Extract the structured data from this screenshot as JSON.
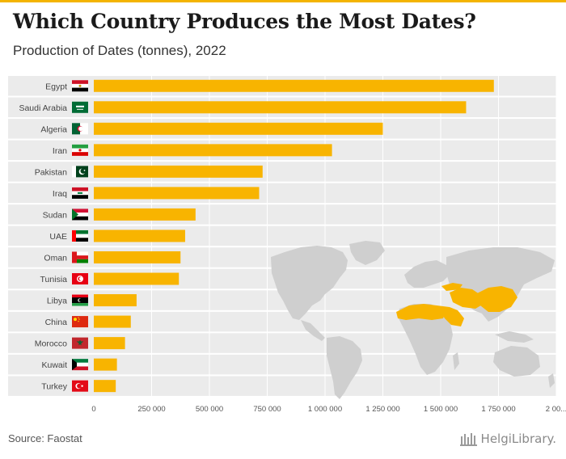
{
  "header": {
    "title": "Which Country Produces the Most Dates?",
    "subtitle": "Production of Dates (tonnes), 2022"
  },
  "footer": {
    "source": "Source: Faostat",
    "logo_text": "HelgiLibrary."
  },
  "colors": {
    "bar": "#f8b400",
    "band": "#ebebeb",
    "map_land": "#cfcfcf",
    "map_highlight": "#f8b400",
    "accent": "#f4b400"
  },
  "chart_data": {
    "type": "bar",
    "orientation": "horizontal",
    "title": "Which Country Produces the Most Dates?",
    "subtitle": "Production of Dates (tonnes), 2022",
    "categories": [
      "Egypt",
      "Saudi Arabia",
      "Algeria",
      "Iran",
      "Pakistan",
      "Iraq",
      "Sudan",
      "UAE",
      "Oman",
      "Tunisia",
      "Libya",
      "China",
      "Morocco",
      "Kuwait",
      "Turkey"
    ],
    "values": [
      1730000,
      1610000,
      1250000,
      1030000,
      730000,
      715000,
      440000,
      395000,
      375000,
      368000,
      185000,
      160000,
      135000,
      100000,
      95000
    ],
    "flags": [
      "egypt-flag-icon",
      "saudi-arabia-flag-icon",
      "algeria-flag-icon",
      "iran-flag-icon",
      "pakistan-flag-icon",
      "iraq-flag-icon",
      "sudan-flag-icon",
      "uae-flag-icon",
      "oman-flag-icon",
      "tunisia-flag-icon",
      "libya-flag-icon",
      "china-flag-icon",
      "morocco-flag-icon",
      "kuwait-flag-icon",
      "turkey-flag-icon"
    ],
    "xlim": [
      0,
      2000000
    ],
    "x_ticks": [
      0,
      250000,
      500000,
      750000,
      1000000,
      1250000,
      1500000,
      1750000,
      2000000
    ],
    "x_tick_labels": [
      "0",
      "250 000",
      "500 000",
      "750 000",
      "1 000 000",
      "1 250 000",
      "1 500 000",
      "1 750 000",
      "2 00..."
    ],
    "xlabel": "",
    "ylabel": "",
    "grid": true,
    "legend": "none"
  }
}
